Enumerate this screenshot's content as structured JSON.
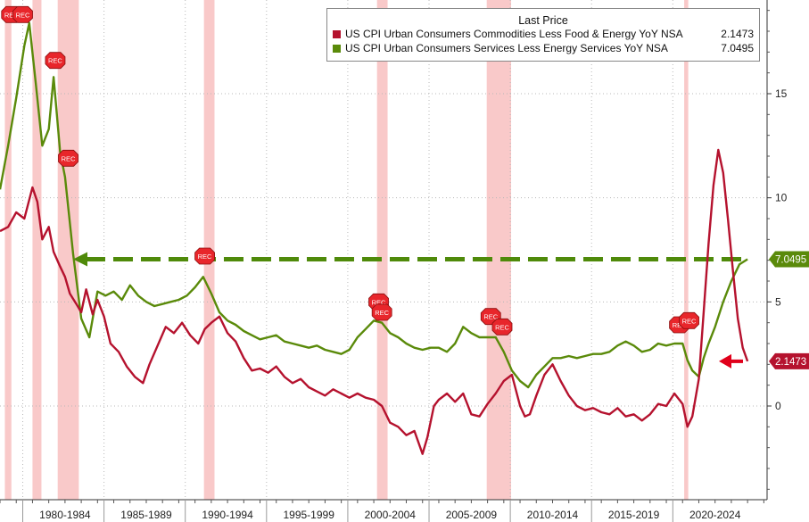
{
  "chart_data": {
    "type": "line",
    "title": "",
    "xlabel": "",
    "ylabel": "",
    "x_range": [
      1978.0,
      2025.2
    ],
    "y_range": [
      -4.5,
      19.5
    ],
    "y_ticks": [
      0,
      5,
      10,
      15
    ],
    "x_period_labels": [
      "1980-1984",
      "1985-1989",
      "1990-1994",
      "1995-1999",
      "2000-2004",
      "2005-2009",
      "2010-2014",
      "2015-2019",
      "2020-2024"
    ],
    "legend_title": "Last Price",
    "legend_position": "top-right",
    "series": [
      {
        "name": "US CPI Urban Consumers Commodities Less Food & Energy YoY NSA",
        "last_price": "2.1473",
        "color": "#b5122e",
        "points": [
          [
            1978.0,
            8.4
          ],
          [
            1978.5,
            8.6
          ],
          [
            1979.0,
            9.3
          ],
          [
            1979.5,
            9.0
          ],
          [
            1980.0,
            10.5
          ],
          [
            1980.3,
            9.8
          ],
          [
            1980.6,
            8.0
          ],
          [
            1981.0,
            8.6
          ],
          [
            1981.3,
            7.4
          ],
          [
            1981.7,
            6.7
          ],
          [
            1982.0,
            6.2
          ],
          [
            1982.3,
            5.4
          ],
          [
            1982.7,
            4.9
          ],
          [
            1983.0,
            4.5
          ],
          [
            1983.3,
            5.6
          ],
          [
            1983.7,
            4.4
          ],
          [
            1984.0,
            5.1
          ],
          [
            1984.4,
            4.3
          ],
          [
            1984.8,
            3.0
          ],
          [
            1985.3,
            2.6
          ],
          [
            1985.8,
            1.9
          ],
          [
            1986.3,
            1.4
          ],
          [
            1986.8,
            1.1
          ],
          [
            1987.2,
            2.0
          ],
          [
            1987.7,
            2.9
          ],
          [
            1988.2,
            3.8
          ],
          [
            1988.7,
            3.5
          ],
          [
            1989.2,
            4.0
          ],
          [
            1989.7,
            3.4
          ],
          [
            1990.2,
            3.0
          ],
          [
            1990.6,
            3.7
          ],
          [
            1991.0,
            4.0
          ],
          [
            1991.5,
            4.3
          ],
          [
            1992.0,
            3.5
          ],
          [
            1992.5,
            3.1
          ],
          [
            1993.0,
            2.3
          ],
          [
            1993.5,
            1.7
          ],
          [
            1994.0,
            1.8
          ],
          [
            1994.5,
            1.6
          ],
          [
            1995.0,
            1.9
          ],
          [
            1995.5,
            1.4
          ],
          [
            1996.0,
            1.1
          ],
          [
            1996.5,
            1.3
          ],
          [
            1997.0,
            0.9
          ],
          [
            1997.5,
            0.7
          ],
          [
            1998.0,
            0.5
          ],
          [
            1998.5,
            0.8
          ],
          [
            1999.0,
            0.6
          ],
          [
            1999.5,
            0.4
          ],
          [
            2000.0,
            0.6
          ],
          [
            2000.5,
            0.4
          ],
          [
            2001.0,
            0.3
          ],
          [
            2001.5,
            0.0
          ],
          [
            2002.0,
            -0.8
          ],
          [
            2002.5,
            -1.0
          ],
          [
            2003.0,
            -1.4
          ],
          [
            2003.5,
            -1.2
          ],
          [
            2004.0,
            -2.3
          ],
          [
            2004.3,
            -1.5
          ],
          [
            2004.7,
            0.0
          ],
          [
            2005.0,
            0.3
          ],
          [
            2005.5,
            0.6
          ],
          [
            2006.0,
            0.2
          ],
          [
            2006.5,
            0.6
          ],
          [
            2007.0,
            -0.4
          ],
          [
            2007.5,
            -0.5
          ],
          [
            2008.0,
            0.1
          ],
          [
            2008.5,
            0.6
          ],
          [
            2009.0,
            1.2
          ],
          [
            2009.5,
            1.5
          ],
          [
            2010.0,
            0.0
          ],
          [
            2010.3,
            -0.5
          ],
          [
            2010.6,
            -0.4
          ],
          [
            2011.0,
            0.5
          ],
          [
            2011.5,
            1.5
          ],
          [
            2012.0,
            2.0
          ],
          [
            2012.5,
            1.2
          ],
          [
            2013.0,
            0.5
          ],
          [
            2013.5,
            0.0
          ],
          [
            2014.0,
            -0.2
          ],
          [
            2014.5,
            -0.1
          ],
          [
            2015.0,
            -0.3
          ],
          [
            2015.5,
            -0.4
          ],
          [
            2016.0,
            -0.1
          ],
          [
            2016.5,
            -0.5
          ],
          [
            2017.0,
            -0.4
          ],
          [
            2017.5,
            -0.7
          ],
          [
            2018.0,
            -0.4
          ],
          [
            2018.5,
            0.1
          ],
          [
            2019.0,
            0.0
          ],
          [
            2019.5,
            0.6
          ],
          [
            2020.0,
            0.1
          ],
          [
            2020.3,
            -1.0
          ],
          [
            2020.6,
            -0.5
          ],
          [
            2021.0,
            1.3
          ],
          [
            2021.3,
            4.5
          ],
          [
            2021.6,
            7.8
          ],
          [
            2021.9,
            10.6
          ],
          [
            2022.2,
            12.3
          ],
          [
            2022.5,
            11.2
          ],
          [
            2022.8,
            8.9
          ],
          [
            2023.1,
            6.5
          ],
          [
            2023.4,
            4.2
          ],
          [
            2023.7,
            2.8
          ],
          [
            2024.0,
            2.1473
          ]
        ]
      },
      {
        "name": "US CPI Urban Consumers Services Less Energy Services YoY NSA",
        "last_price": "7.0495",
        "color": "#5a8a0a",
        "points": [
          [
            1978.0,
            10.4
          ],
          [
            1978.5,
            12.5
          ],
          [
            1979.0,
            14.8
          ],
          [
            1979.5,
            17.3
          ],
          [
            1979.8,
            18.4
          ],
          [
            1980.2,
            15.5
          ],
          [
            1980.6,
            12.5
          ],
          [
            1981.0,
            13.3
          ],
          [
            1981.3,
            15.8
          ],
          [
            1981.7,
            12.2
          ],
          [
            1982.0,
            11.0
          ],
          [
            1982.5,
            7.3
          ],
          [
            1983.0,
            4.2
          ],
          [
            1983.5,
            3.3
          ],
          [
            1984.0,
            5.5
          ],
          [
            1984.5,
            5.3
          ],
          [
            1985.0,
            5.5
          ],
          [
            1985.5,
            5.1
          ],
          [
            1986.0,
            5.8
          ],
          [
            1986.5,
            5.3
          ],
          [
            1987.0,
            5.0
          ],
          [
            1987.5,
            4.8
          ],
          [
            1988.0,
            4.9
          ],
          [
            1988.5,
            5.0
          ],
          [
            1989.0,
            5.1
          ],
          [
            1989.5,
            5.3
          ],
          [
            1990.0,
            5.7
          ],
          [
            1990.5,
            6.2
          ],
          [
            1991.0,
            5.4
          ],
          [
            1991.5,
            4.5
          ],
          [
            1992.0,
            4.1
          ],
          [
            1992.5,
            3.9
          ],
          [
            1993.0,
            3.6
          ],
          [
            1993.5,
            3.4
          ],
          [
            1994.0,
            3.2
          ],
          [
            1994.5,
            3.3
          ],
          [
            1995.0,
            3.4
          ],
          [
            1995.5,
            3.1
          ],
          [
            1996.0,
            3.0
          ],
          [
            1996.5,
            2.9
          ],
          [
            1997.0,
            2.8
          ],
          [
            1997.5,
            2.9
          ],
          [
            1998.0,
            2.7
          ],
          [
            1998.5,
            2.6
          ],
          [
            1999.0,
            2.5
          ],
          [
            1999.5,
            2.7
          ],
          [
            2000.0,
            3.3
          ],
          [
            2000.5,
            3.7
          ],
          [
            2001.0,
            4.1
          ],
          [
            2001.5,
            4.0
          ],
          [
            2002.0,
            3.5
          ],
          [
            2002.5,
            3.3
          ],
          [
            2003.0,
            3.0
          ],
          [
            2003.5,
            2.8
          ],
          [
            2004.0,
            2.7
          ],
          [
            2004.5,
            2.8
          ],
          [
            2005.0,
            2.8
          ],
          [
            2005.5,
            2.6
          ],
          [
            2006.0,
            3.0
          ],
          [
            2006.5,
            3.8
          ],
          [
            2007.0,
            3.5
          ],
          [
            2007.5,
            3.3
          ],
          [
            2008.0,
            3.3
          ],
          [
            2008.5,
            3.3
          ],
          [
            2009.0,
            2.6
          ],
          [
            2009.5,
            1.7
          ],
          [
            2010.0,
            1.2
          ],
          [
            2010.5,
            0.9
          ],
          [
            2011.0,
            1.5
          ],
          [
            2011.5,
            1.9
          ],
          [
            2012.0,
            2.3
          ],
          [
            2012.5,
            2.3
          ],
          [
            2013.0,
            2.4
          ],
          [
            2013.5,
            2.3
          ],
          [
            2014.0,
            2.4
          ],
          [
            2014.5,
            2.5
          ],
          [
            2015.0,
            2.5
          ],
          [
            2015.5,
            2.6
          ],
          [
            2016.0,
            2.9
          ],
          [
            2016.5,
            3.1
          ],
          [
            2017.0,
            2.9
          ],
          [
            2017.5,
            2.6
          ],
          [
            2018.0,
            2.7
          ],
          [
            2018.5,
            3.0
          ],
          [
            2019.0,
            2.9
          ],
          [
            2019.5,
            3.0
          ],
          [
            2020.0,
            3.0
          ],
          [
            2020.3,
            2.2
          ],
          [
            2020.6,
            1.7
          ],
          [
            2021.0,
            1.4
          ],
          [
            2021.3,
            2.3
          ],
          [
            2021.6,
            3.0
          ],
          [
            2022.0,
            3.8
          ],
          [
            2022.5,
            5.0
          ],
          [
            2023.0,
            6.0
          ],
          [
            2023.5,
            6.8
          ],
          [
            2024.0,
            7.0495
          ]
        ]
      }
    ],
    "recession_bands": [
      [
        1978.3,
        1978.7
      ],
      [
        1980.0,
        1980.55
      ],
      [
        1981.55,
        1982.85
      ],
      [
        1990.55,
        1991.2
      ],
      [
        2001.2,
        2001.85
      ],
      [
        2007.95,
        2009.45
      ],
      [
        2020.1,
        2020.35
      ]
    ],
    "rec_markers": [
      {
        "label": "REC",
        "x": 1978.7,
        "y": 18.8
      },
      {
        "label": "REC",
        "x": 1979.4,
        "y": 18.8
      },
      {
        "label": "REC",
        "x": 1981.4,
        "y": 16.6
      },
      {
        "label": "REC",
        "x": 1982.2,
        "y": 11.9
      },
      {
        "label": "REC",
        "x": 1990.6,
        "y": 7.2
      },
      {
        "label": "REC",
        "x": 2001.3,
        "y": 5.0
      },
      {
        "label": "REC",
        "x": 2001.5,
        "y": 4.5
      },
      {
        "label": "REC",
        "x": 2008.2,
        "y": 4.3
      },
      {
        "label": "REC",
        "x": 2008.9,
        "y": 3.8
      },
      {
        "label": "REC",
        "x": 2019.8,
        "y": 3.9
      },
      {
        "label": "REC",
        "x": 2020.4,
        "y": 4.1
      }
    ],
    "reference_line": {
      "y": 7.0495,
      "from_x": 1982.5,
      "to_x": 2024.0,
      "color": "#4f8a0a"
    },
    "arrow": {
      "y": 2.1473,
      "color": "#e0001b"
    }
  }
}
